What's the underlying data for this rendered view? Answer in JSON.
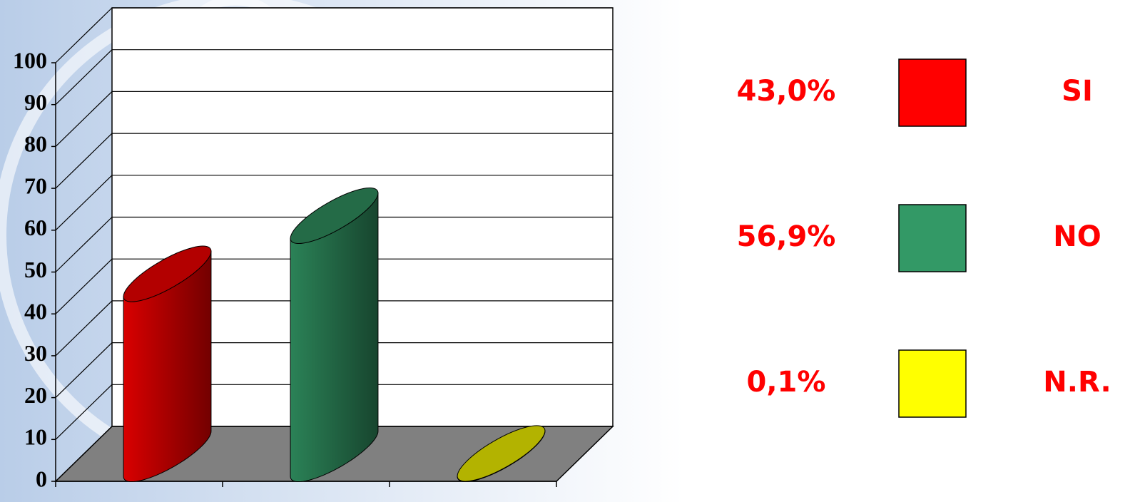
{
  "chart_data": {
    "type": "bar",
    "categories": [
      "SI",
      "NO",
      "N.R."
    ],
    "values": [
      43.0,
      56.9,
      0.1
    ],
    "value_labels": [
      "43,0%",
      "56,9%",
      "0,1%"
    ],
    "colors": [
      "#ff0000",
      "#339966",
      "#ffff00"
    ],
    "ylim": [
      0,
      100
    ],
    "yticks": [
      0,
      10,
      20,
      30,
      40,
      50,
      60,
      70,
      80,
      90,
      100
    ],
    "grid": true
  }
}
